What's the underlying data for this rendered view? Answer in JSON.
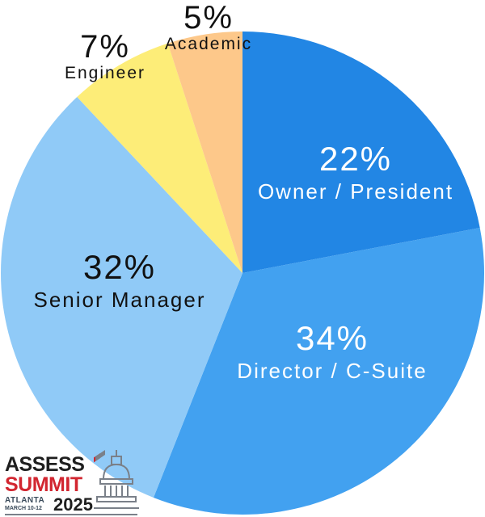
{
  "chart_data": {
    "type": "pie",
    "title": "",
    "start_angle_deg": 0,
    "direction": "clockwise",
    "categories": [
      "Owner / President",
      "Director / C-Suite",
      "Senior Manager",
      "Engineer",
      "Academic"
    ],
    "values": [
      22,
      34,
      32,
      7,
      5
    ],
    "labels": [
      "22%",
      "34%",
      "32%",
      "7%",
      "5%"
    ],
    "colors": [
      "#2286e4",
      "#42a1f0",
      "#90caf7",
      "#fded78",
      "#fdc88a"
    ],
    "label_colors": [
      "#ffffff",
      "#ffffff",
      "#111111",
      "#111111",
      "#111111"
    ],
    "legend": "none (inline labels)"
  },
  "logo": {
    "line1": "ASSESS",
    "line2": "SUMMIT",
    "city": "ATLANTA",
    "dates": "MARCH 10-12",
    "year": "2025",
    "colors": {
      "dark": "#1f1f1f",
      "red": "#d22630",
      "gray": "#7a8089"
    }
  }
}
